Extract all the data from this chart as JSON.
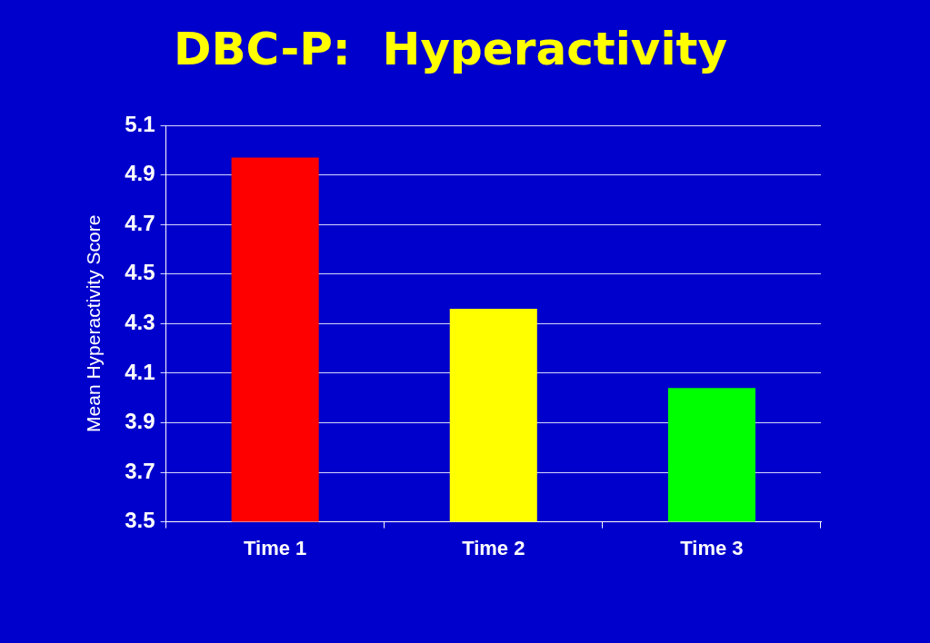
{
  "chart_data": {
    "type": "bar",
    "title": "DBC-P:  Hyperactivity",
    "ylabel": "Mean Hyperactivity Score",
    "categories": [
      "Time 1",
      "Time 2",
      "Time 3"
    ],
    "values": [
      4.97,
      4.36,
      4.04
    ],
    "colors": [
      "#ff0000",
      "#ffff00",
      "#00ff00"
    ],
    "ylim": [
      3.5,
      5.1
    ],
    "yticks": [
      3.5,
      3.7,
      3.9,
      4.1,
      4.3,
      4.5,
      4.7,
      4.9,
      5.1
    ],
    "grid": "y"
  }
}
